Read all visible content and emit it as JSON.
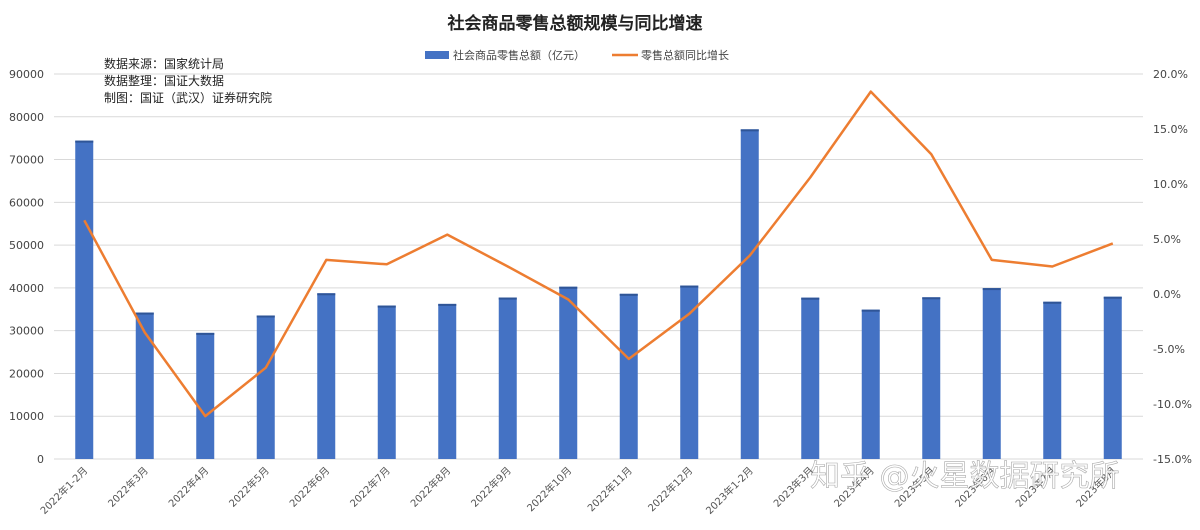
{
  "colors": {
    "bar": "#4472C4",
    "line": "#ED7D31",
    "grid": "#D9D9D9"
  },
  "chart_data": {
    "type": "bar",
    "title": "社会商品零售总额规模与同比增速",
    "categories": [
      "2022年1-2月",
      "2022年3月",
      "2022年4月",
      "2022年5月",
      "2022年6月",
      "2022年7月",
      "2022年8月",
      "2022年9月",
      "2022年10月",
      "2022年11月",
      "2022年12月",
      "2023年1-2月",
      "2023年3月",
      "2023年4月",
      "2023年5月",
      "2023年6月",
      "2023年7月",
      "2023年8月"
    ],
    "series": [
      {
        "name": "社会商品零售总额（亿元）",
        "type": "bar",
        "axis": "left",
        "values": [
          74426,
          34233,
          29483,
          33547,
          38742,
          35870,
          36258,
          37745,
          40271,
          38615,
          40542,
          77067,
          37715,
          34910,
          37803,
          39951,
          36761,
          37933
        ]
      },
      {
        "name": "零售总额同比增长",
        "type": "line",
        "axis": "right",
        "values": [
          6.7,
          -3.5,
          -11.1,
          -6.7,
          3.1,
          2.7,
          5.4,
          2.5,
          -0.5,
          -5.9,
          -1.8,
          3.5,
          10.6,
          18.4,
          12.7,
          3.1,
          2.5,
          4.6
        ]
      }
    ],
    "y_left": {
      "min": 0,
      "max": 90000,
      "step": 10000,
      "ticks": [
        "0",
        "10000",
        "20000",
        "30000",
        "40000",
        "50000",
        "60000",
        "70000",
        "80000",
        "90000"
      ]
    },
    "y_right": {
      "min": -15,
      "max": 20,
      "step": 5,
      "ticks": [
        "-15.0%",
        "-10.0%",
        "-5.0%",
        "0.0%",
        "5.0%",
        "10.0%",
        "15.0%",
        "20.0%"
      ]
    },
    "grid": true,
    "legend_position": "top-center",
    "notes": [
      "数据来源：国家统计局",
      "数据整理：国证大数据",
      "制图：国证（武汉）证券研究院"
    ]
  },
  "watermark": "知乎 @火星数据研究所"
}
